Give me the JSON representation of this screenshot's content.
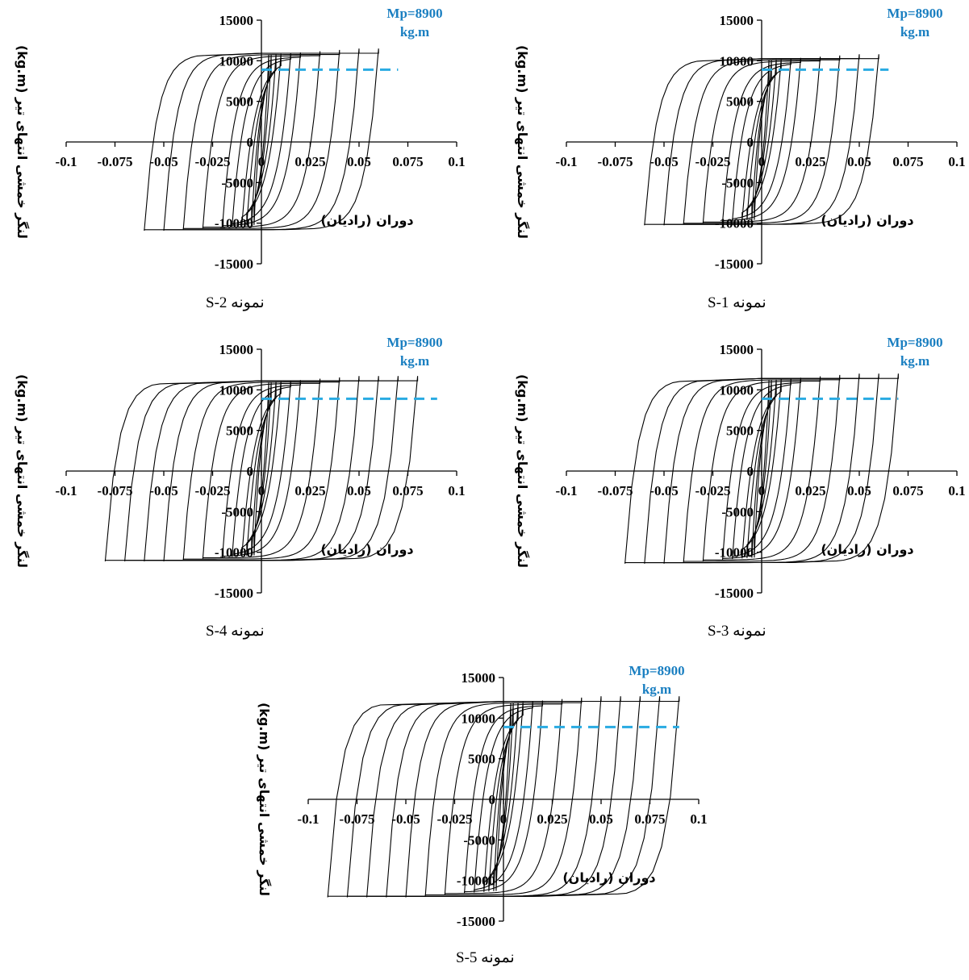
{
  "chart_data": [
    {
      "type": "line",
      "caption": "نمونه S-2",
      "xlabel": "دوران (رادیان)",
      "ylabel": "لنگر خمشی انتهای تیر (kg.m)",
      "xlim": [
        -0.1,
        0.1
      ],
      "ylim": [
        -15000,
        15000
      ],
      "x_ticks": [
        "-0.1",
        "-0.075",
        "-0.05",
        "-0.025",
        "0",
        "0.025",
        "0.05",
        "0.075",
        "0.1"
      ],
      "y_ticks": [
        "15000",
        "10000",
        "5000",
        "0",
        "-5000",
        "-10000",
        "-15000"
      ],
      "annotation": {
        "line1": "Mp=8900",
        "line2": "kg.m",
        "value": 8900,
        "x_range": [
          0,
          0.07
        ],
        "color": "#29abe2"
      },
      "series": [
        {
          "amplitudes": [
            0.00375,
            0.005,
            0.0075,
            0.01,
            0.015,
            0.02,
            0.03,
            0.04,
            0.05,
            0.06
          ],
          "peak_moment": 11500,
          "yield_rotation": 0.009
        }
      ]
    },
    {
      "type": "line",
      "caption": "نمونه S-1",
      "xlabel": "دوران (رادیان)",
      "ylabel": "لنگر خمشی انتهای تیر (kg.m)",
      "xlim": [
        -0.1,
        0.1
      ],
      "ylim": [
        -15000,
        15000
      ],
      "x_ticks": [
        "-0.1",
        "-0.075",
        "-0.05",
        "-0.025",
        "0",
        "0.025",
        "0.05",
        "0.075",
        "0.1"
      ],
      "y_ticks": [
        "15000",
        "10000",
        "5000",
        "0",
        "-5000",
        "-10000",
        "-15000"
      ],
      "annotation": {
        "line1": "Mp=8900",
        "line2": "kg.m",
        "value": 8900,
        "x_range": [
          0,
          0.065
        ],
        "color": "#29abe2"
      },
      "series": [
        {
          "amplitudes": [
            0.00375,
            0.005,
            0.0075,
            0.01,
            0.015,
            0.02,
            0.03,
            0.04,
            0.05,
            0.06
          ],
          "peak_moment": 10800,
          "yield_rotation": 0.009
        }
      ]
    },
    {
      "type": "line",
      "caption": "نمونه S-4",
      "xlabel": "دوران (رادیان)",
      "ylabel": "لنگر خمشی انتهای تیر (kg.m)",
      "xlim": [
        -0.1,
        0.1
      ],
      "ylim": [
        -15000,
        15000
      ],
      "x_ticks": [
        "-0.1",
        "-0.075",
        "-0.05",
        "-0.025",
        "0",
        "0.025",
        "0.05",
        "0.075",
        "0.1"
      ],
      "y_ticks": [
        "15000",
        "10000",
        "5000",
        "0",
        "-5000",
        "-10000",
        "-15000"
      ],
      "annotation": {
        "line1": "Mp=8900",
        "line2": "kg.m",
        "value": 8900,
        "x_range": [
          0,
          0.09
        ],
        "color": "#29abe2"
      },
      "series": [
        {
          "amplitudes": [
            0.00375,
            0.005,
            0.0075,
            0.01,
            0.015,
            0.02,
            0.03,
            0.04,
            0.05,
            0.06,
            0.07,
            0.08
          ],
          "peak_moment": 11700,
          "yield_rotation": 0.009
        }
      ]
    },
    {
      "type": "line",
      "caption": "نمونه S-3",
      "xlabel": "دوران (رادیان)",
      "ylabel": "لنگر خمشی انتهای تیر (kg.m)",
      "xlim": [
        -0.1,
        0.1
      ],
      "ylim": [
        -15000,
        15000
      ],
      "x_ticks": [
        "-0.1",
        "-0.075",
        "-0.05",
        "-0.025",
        "0",
        "0.025",
        "0.05",
        "0.075",
        "0.1"
      ],
      "y_ticks": [
        "15000",
        "10000",
        "5000",
        "0",
        "-5000",
        "-10000",
        "-15000"
      ],
      "annotation": {
        "line1": "Mp=8900",
        "line2": "kg.m",
        "value": 8900,
        "x_range": [
          0,
          0.07
        ],
        "color": "#29abe2"
      },
      "series": [
        {
          "amplitudes": [
            0.00375,
            0.005,
            0.0075,
            0.01,
            0.015,
            0.02,
            0.03,
            0.04,
            0.05,
            0.06,
            0.07
          ],
          "peak_moment": 12000,
          "yield_rotation": 0.009
        }
      ]
    },
    {
      "type": "line",
      "caption": "نمونه S-5",
      "xlabel": "دوران (رادیان)",
      "ylabel": "لنگر خمشی انتهای تیر (kg.m)",
      "xlim": [
        -0.1,
        0.1
      ],
      "ylim": [
        -15000,
        15000
      ],
      "x_ticks": [
        "-0.1",
        "-0.075",
        "-0.05",
        "-0.025",
        "0",
        "0.025",
        "0.05",
        "0.075",
        "0.1"
      ],
      "y_ticks": [
        "15000",
        "10000",
        "5000",
        "0",
        "-5000",
        "-10000",
        "-15000"
      ],
      "annotation": {
        "line1": "Mp=8900",
        "line2": "kg.m",
        "value": 8900,
        "x_range": [
          0,
          0.09
        ],
        "color": "#29abe2"
      },
      "series": [
        {
          "amplitudes": [
            0.00375,
            0.005,
            0.0075,
            0.01,
            0.015,
            0.02,
            0.03,
            0.04,
            0.05,
            0.06,
            0.07,
            0.08,
            0.09
          ],
          "peak_moment": 12700,
          "yield_rotation": 0.009
        }
      ]
    }
  ]
}
